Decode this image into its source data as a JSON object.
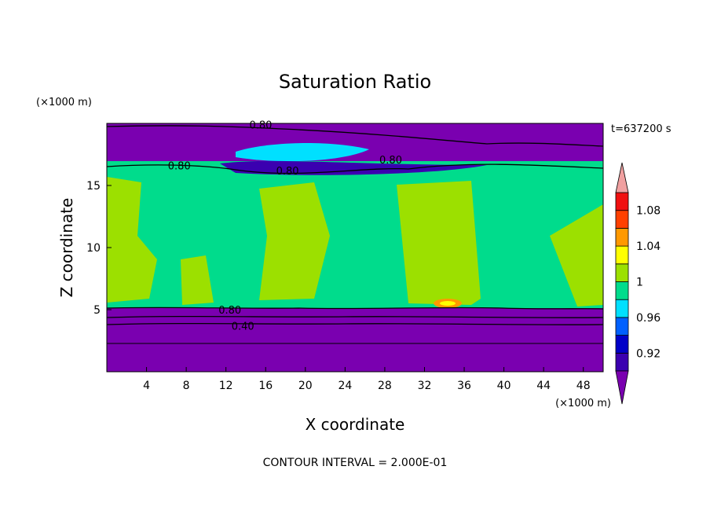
{
  "chart_data": {
    "type": "heatmap",
    "title": "Saturation Ratio",
    "xlabel": "X coordinate",
    "ylabel": "Z coordinate",
    "x_unit": "(×1000 m)",
    "y_unit": "(×1000 m)",
    "time_label": "t=637200 s",
    "footer": "CONTOUR INTERVAL = 2.000E-01",
    "xlim": [
      0,
      50
    ],
    "ylim": [
      0,
      20
    ],
    "x_ticks": [
      4,
      8,
      12,
      16,
      20,
      24,
      28,
      32,
      36,
      40,
      44,
      48
    ],
    "y_ticks": [
      5,
      10,
      15
    ],
    "colorbar": {
      "levels": [
        0.92,
        0.96,
        1,
        1.04,
        1.08
      ],
      "tick_labels": [
        "0.92",
        "0.96",
        "1",
        "1.04",
        "1.08"
      ],
      "colors": [
        "#7a00b0",
        "#3b00b0",
        "#0000c8",
        "#0060ff",
        "#00e0ff",
        "#00dc8c",
        "#9ce000",
        "#ffff00",
        "#ff9900",
        "#ff4000",
        "#f01010",
        "#f0a0a0"
      ]
    },
    "contour_labels": [
      {
        "text": "0.80",
        "x": 15.5,
        "y": 19.9
      },
      {
        "text": "0.80",
        "x": 7.3,
        "y": 16.6
      },
      {
        "text": "0.80",
        "x": 18.2,
        "y": 16.2
      },
      {
        "text": "0.80",
        "x": 28.6,
        "y": 17.1
      },
      {
        "text": "0.80",
        "x": 12.4,
        "y": 5.0
      },
      {
        "text": "0.40",
        "x": 13.7,
        "y": 3.7
      }
    ]
  }
}
